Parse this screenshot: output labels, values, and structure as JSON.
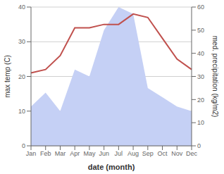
{
  "chart_data": {
    "type": "line",
    "categories": [
      "Jan",
      "Feb",
      "Mar",
      "Apr",
      "May",
      "Jun",
      "Jul",
      "Aug",
      "Sep",
      "Oct",
      "Nov",
      "Dec"
    ],
    "series": [
      {
        "type": "area",
        "axis": "y2",
        "color": "#c5d0f5",
        "values": [
          17,
          23,
          15,
          33,
          30,
          50,
          60,
          57,
          25,
          21,
          17,
          15
        ]
      },
      {
        "type": "line",
        "color": "#c0504d",
        "values": [
          21,
          22,
          26,
          34,
          34,
          35,
          35,
          38,
          37,
          31,
          25,
          22
        ]
      }
    ],
    "xlabel": "date (month)",
    "ylabel": "max temp (C)",
    "y2label": "med. precipitation (kg/m2)",
    "ylim": [
      0,
      40
    ],
    "yticks": [
      0,
      10,
      20,
      30,
      40
    ],
    "y2lim": [
      0,
      60
    ],
    "y2ticks": [
      0,
      10,
      20,
      30,
      40,
      50,
      60
    ],
    "grid": true
  }
}
